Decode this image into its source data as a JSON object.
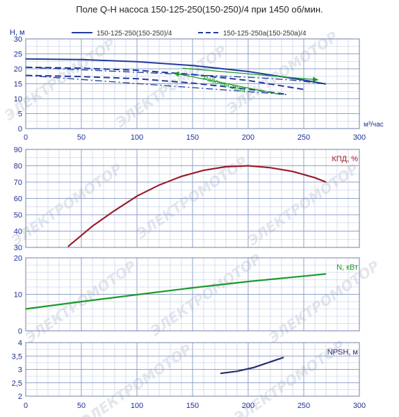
{
  "title": "Поле Q-H насоса 150-125-250(150-250)/4 при 1450 об/мин.",
  "watermark": "ЭЛЕКТРОМОТОР",
  "colors": {
    "grid": "#b7c6e2",
    "axis_text": "#1a2f9a",
    "watermark": "#e3e7ed"
  },
  "chart_data": [
    {
      "type": "line",
      "ylabel": "H, м",
      "xlabel": "м³/час",
      "xlim": [
        0,
        300
      ],
      "ylim": [
        0,
        30
      ],
      "x_ticks": [
        "0",
        "50",
        "100",
        "150",
        "200",
        "250",
        "300"
      ],
      "y_ticks": [
        "0",
        "5",
        "10",
        "15",
        "20",
        "25",
        "30"
      ],
      "legend_location": "top",
      "annotation": "Рабочая зона",
      "series": [
        {
          "name": "150-125-250(150-250)/4",
          "style": "solid",
          "color": "#1f3a9e",
          "x": [
            0,
            50,
            100,
            150,
            200,
            250,
            270
          ],
          "y": [
            23.3,
            23.1,
            22.4,
            21.1,
            19.1,
            16.2,
            14.9
          ]
        },
        {
          "name": "150-125-250а(150-250а)/4",
          "style": "dashed",
          "color": "#1f3a9e",
          "x": [
            0,
            50,
            100,
            150,
            200,
            250
          ],
          "y": [
            20.5,
            20.2,
            19.5,
            18.1,
            16.1,
            13.1
          ]
        },
        {
          "name": "",
          "style": "dashed",
          "color": "#1f3a9e",
          "x": [
            0,
            50,
            100,
            150,
            200,
            235
          ],
          "y": [
            17.8,
            17.4,
            16.7,
            15.2,
            13.2,
            11.4
          ]
        },
        {
          "name": "",
          "style": "dashdot",
          "color": "#1f3a9e",
          "x": [
            0,
            210,
            240,
            270
          ],
          "y": [
            20.5,
            17.0,
            16.2,
            14.9
          ]
        },
        {
          "name": "",
          "style": "dashdot",
          "color": "#1f3a9e",
          "x": [
            0,
            235
          ],
          "y": [
            17.8,
            11.4
          ]
        }
      ],
      "working_zone": {
        "color": "#1a9a2a",
        "arrows": [
          {
            "from": [
              141,
              20.2
            ],
            "to": [
              263,
              16.3
            ]
          },
          {
            "from": [
              229,
              11.4
            ],
            "to": [
              133,
              18.6
            ]
          }
        ]
      }
    },
    {
      "type": "line",
      "ylabel": "КПД, %",
      "xlim": [
        0,
        300
      ],
      "ylim": [
        30,
        90
      ],
      "y_ticks": [
        "30",
        "40",
        "50",
        "60",
        "70",
        "80",
        "90"
      ],
      "series": [
        {
          "name": "",
          "color": "#9b1b2a",
          "x": [
            38,
            60,
            80,
            100,
            120,
            140,
            160,
            180,
            200,
            220,
            240,
            260,
            270
          ],
          "y": [
            30.5,
            43,
            52.6,
            61.4,
            68.2,
            73.5,
            77.2,
            79.4,
            80,
            78.8,
            76.5,
            72.7,
            70
          ]
        }
      ]
    },
    {
      "type": "line",
      "ylabel": "N, кВт",
      "xlim": [
        0,
        300
      ],
      "ylim": [
        0,
        20
      ],
      "y_ticks": [
        "0",
        "10",
        "20"
      ],
      "series": [
        {
          "name": "",
          "color": "#1a9a2a",
          "x": [
            0,
            50,
            100,
            150,
            200,
            250,
            270
          ],
          "y": [
            6,
            8,
            9.9,
            11.8,
            13.5,
            15,
            15.6
          ]
        }
      ]
    },
    {
      "type": "line",
      "ylabel": "NPSH, м",
      "xlabel": "",
      "xlim": [
        0,
        300
      ],
      "ylim": [
        2,
        4
      ],
      "x_ticks": [
        "0",
        "50",
        "100",
        "150",
        "200",
        "250",
        "300"
      ],
      "y_ticks": [
        "2",
        "2,5",
        "3",
        "3,5",
        "4"
      ],
      "series": [
        {
          "name": "",
          "color": "#2a2a6e",
          "x": [
            175,
            190,
            205,
            220,
            232
          ],
          "y": [
            2.85,
            2.93,
            3.07,
            3.28,
            3.45
          ]
        }
      ]
    }
  ]
}
